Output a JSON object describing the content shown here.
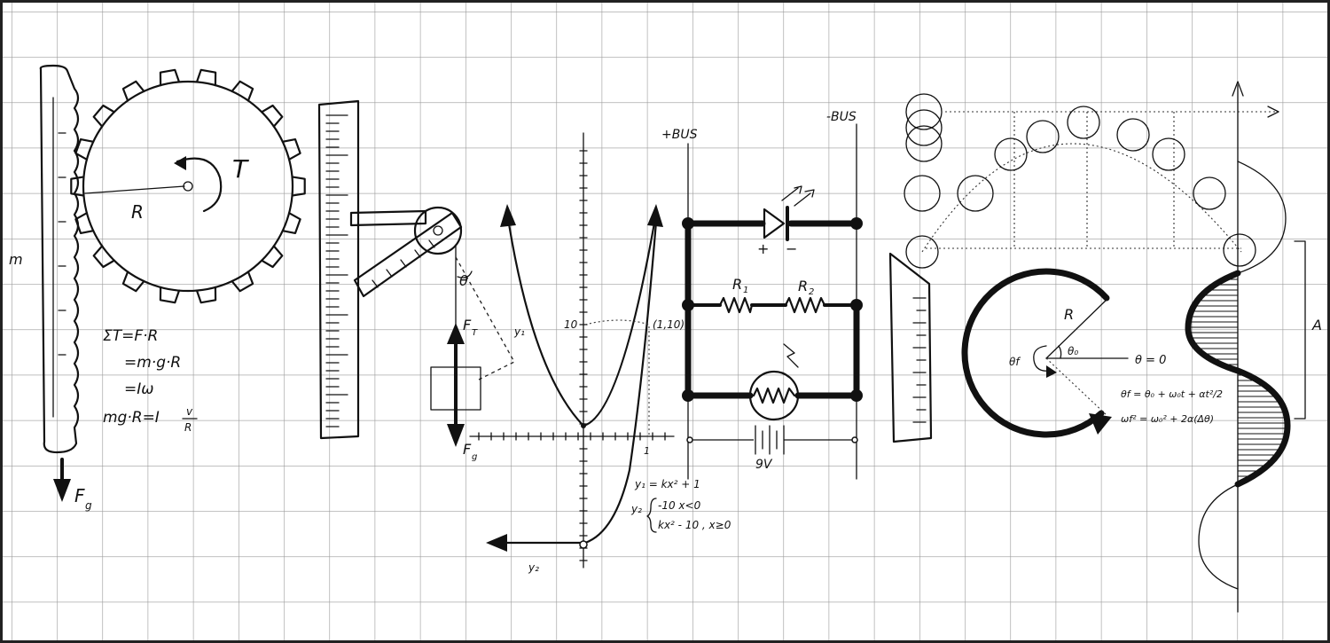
{
  "colors": {
    "paper": "#ffffff",
    "grid": "#9a9a9a",
    "ink": "#111111",
    "frame": "#222222"
  },
  "letter_p": {
    "mass_label": "m",
    "radius_label": "R",
    "torque_label": "T",
    "force_label": "F",
    "force_sub": "g",
    "equations": [
      "ΣT=F·R",
      "=m·g·R",
      "=Iω",
      "mg·R=I"
    ],
    "fraction_num": "v",
    "fraction_den": "R"
  },
  "letter_h": {
    "tension_label": "F",
    "tension_sub": "T",
    "angle_label": "θ",
    "gravity_label": "F",
    "gravity_sub": "g"
  },
  "letter_y": {
    "curve1_label": "y₁",
    "curve2_label": "y₂",
    "tick_10": "10",
    "tick_1": "1",
    "point_label": "(1,10)",
    "eq1": "y₁ = kx² + 1",
    "eq2_lead": "y₂",
    "eq2a": "-10  x<0",
    "eq2b": "kx² - 10 ,  x≥0"
  },
  "letter_s": {
    "bus_plus": "+BUS",
    "bus_minus": "-BUS",
    "r1_label": "R",
    "r1_sub": "1",
    "r2_label": "R",
    "r2_sub": "2",
    "led_plus": "+",
    "led_minus": "−",
    "battery_label": "9V"
  },
  "letter_i": {},
  "letter_c": {
    "radius_label": "R",
    "theta_f": "θf",
    "theta_0": "θ₀",
    "theta_zero": "θ = 0",
    "eq1": "θf = θ₀ + ω₀t + αt²/2",
    "eq2": "ωf² = ω₀² + 2α(Δθ)"
  },
  "letter_s2": {
    "amplitude_label": "A"
  }
}
